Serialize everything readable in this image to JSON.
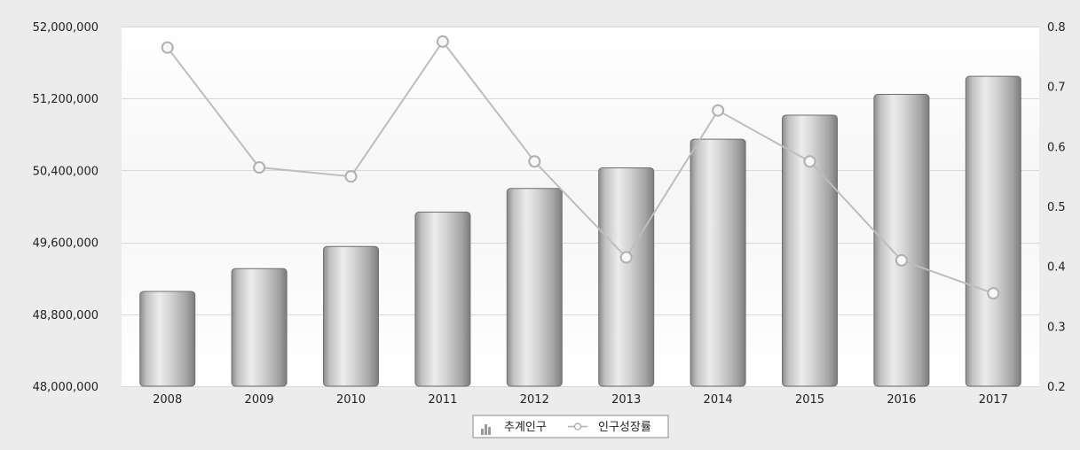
{
  "chart_data": {
    "type": "bar",
    "title": "",
    "categories": [
      "2008",
      "2009",
      "2010",
      "2011",
      "2012",
      "2013",
      "2014",
      "2015",
      "2016",
      "2017"
    ],
    "series": [
      {
        "name": "추계인구",
        "type": "bar",
        "axis": "left",
        "values": [
          49054000,
          49308000,
          49554000,
          49937000,
          50200000,
          50429000,
          50747000,
          51015000,
          51246000,
          51447000
        ]
      },
      {
        "name": "인구성장률",
        "type": "line",
        "axis": "right",
        "values": [
          0.765,
          0.565,
          0.55,
          0.775,
          0.575,
          0.415,
          0.66,
          0.575,
          0.41,
          0.355
        ]
      }
    ],
    "ylim_left": [
      48000000,
      52000000
    ],
    "yticks_left": [
      "48,000,000",
      "48,800,000",
      "49,600,000",
      "50,400,000",
      "51,200,000",
      "52,000,000"
    ],
    "ylim_right": [
      0.2,
      0.8
    ],
    "yticks_right": [
      "0.2",
      "0.3",
      "0.4",
      "0.5",
      "0.6",
      "0.7",
      "0.8"
    ],
    "grid": true,
    "legend_position": "bottom-center",
    "colors": {
      "bar": "#a8a8a8",
      "line": "#bdbdbd",
      "plot_background": "#ffffff",
      "page_background": "#ececec"
    }
  }
}
